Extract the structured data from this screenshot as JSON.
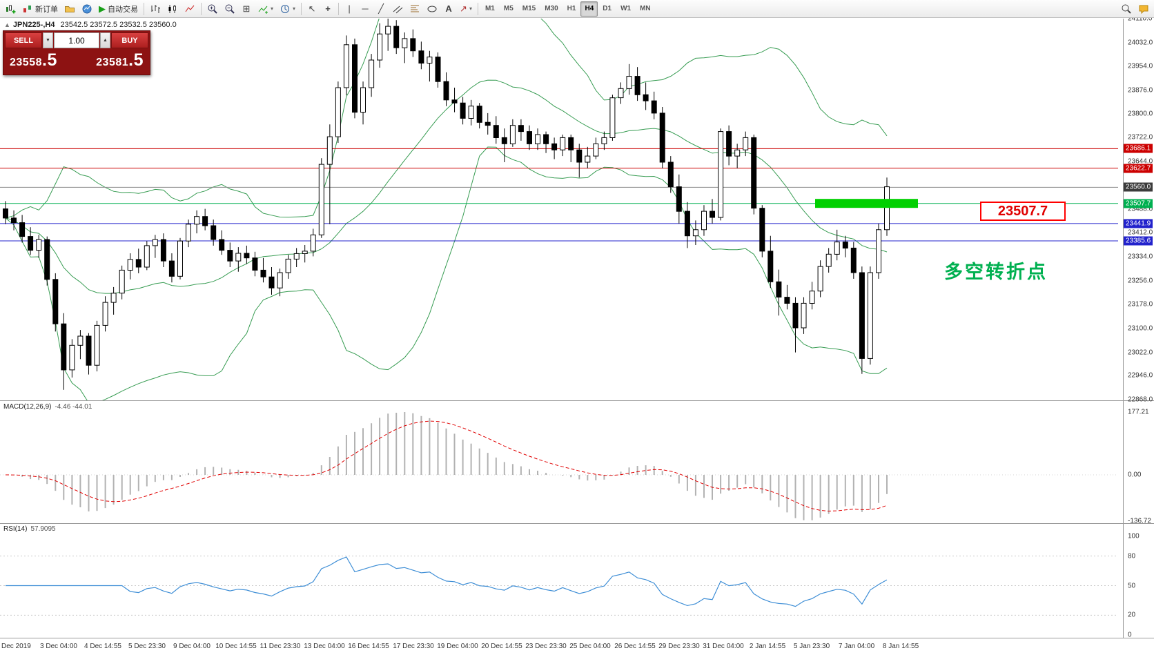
{
  "toolbar": {
    "new_order_label": "新订单",
    "auto_trading_label": "自动交易",
    "timeframes": [
      "M1",
      "M5",
      "M15",
      "M30",
      "H1",
      "H4",
      "D1",
      "W1",
      "MN"
    ],
    "active_timeframe": "H4"
  },
  "icons": {
    "collapse": "▲",
    "dropdown": "▾",
    "spin_up": "▲",
    "spin_down": "▼",
    "cursor": "↖",
    "crosshair": "+",
    "vline": "|",
    "hline": "─",
    "trendline": "╱",
    "text_tool": "A",
    "arrow_tool": "↗",
    "play": "▶",
    "tile": "⊞",
    "list": "≡"
  },
  "symbol_header": {
    "symbol": "JPN225-,H4",
    "quote": "23542.5 23572.5 23532.5 23560.0"
  },
  "trade_panel": {
    "sell_label": "SELL",
    "buy_label": "BUY",
    "volume": "1.00",
    "sell_price": "23558",
    "sell_pip": ".5",
    "buy_price": "23581",
    "buy_pip": ".5"
  },
  "annotation": {
    "text": "多空转折点",
    "color": "#00b050"
  },
  "level_callout": {
    "text": "23507.7",
    "color": "#ff0000"
  },
  "price_axis": {
    "ticks": [
      24110,
      24032,
      23954,
      23876,
      23800,
      23722,
      23644,
      23488,
      23412,
      23334,
      23256,
      23178,
      23100,
      23022,
      22946,
      22868
    ]
  },
  "macd_panel": {
    "title": "MACD(12,26,9)",
    "values": "-4.46 -44.01",
    "axis_labels": [
      "177.21",
      "0.00",
      "-136.72"
    ]
  },
  "rsi_panel": {
    "title": "RSI(14)",
    "value": "57.9095",
    "axis_levels": [
      100,
      80,
      50,
      20,
      0
    ]
  },
  "time_axis": [
    "Dec 2019",
    "3 Dec 04:00",
    "4 Dec 14:55",
    "5 Dec 23:30",
    "9 Dec 04:00",
    "10 Dec 14:55",
    "11 Dec 23:30",
    "13 Dec 04:00",
    "16 Dec 14:55",
    "17 Dec 23:30",
    "19 Dec 04:00",
    "20 Dec 14:55",
    "23 Dec 23:30",
    "25 Dec 04:00",
    "26 Dec 14:55",
    "29 Dec 23:30",
    "31 Dec 04:00",
    "2 Jan 14:55",
    "5 Jan 23:30",
    "7 Jan 04:00",
    "8 Jan 14:55"
  ],
  "chart_data": {
    "type": "candlestick",
    "symbol": "JPN225-",
    "timeframe": "H4",
    "title": "JPN225-,H4 23542.5 23572.5 23532.5 23560.0",
    "ohlc_current": {
      "open": 23542.5,
      "high": 23572.5,
      "low": 23532.5,
      "close": 23560.0
    },
    "bid": 23558.5,
    "ask": 23581.5,
    "price_range": [
      22868,
      24110
    ],
    "candles": [
      [
        23490,
        23515,
        23440,
        23460
      ],
      [
        23460,
        23485,
        23420,
        23445
      ],
      [
        23445,
        23470,
        23380,
        23400
      ],
      [
        23400,
        23430,
        23340,
        23355
      ],
      [
        23355,
        23405,
        23330,
        23390
      ],
      [
        23390,
        23400,
        23240,
        23260
      ],
      [
        23260,
        23280,
        23090,
        23115
      ],
      [
        23115,
        23150,
        22900,
        22965
      ],
      [
        22965,
        23065,
        22940,
        23045
      ],
      [
        23045,
        23095,
        23000,
        23075
      ],
      [
        23075,
        23085,
        22950,
        22980
      ],
      [
        22980,
        23125,
        22960,
        23110
      ],
      [
        23110,
        23205,
        23090,
        23185
      ],
      [
        23185,
        23235,
        23145,
        23215
      ],
      [
        23215,
        23305,
        23195,
        23290
      ],
      [
        23290,
        23345,
        23260,
        23325
      ],
      [
        23325,
        23360,
        23280,
        23300
      ],
      [
        23300,
        23385,
        23290,
        23370
      ],
      [
        23370,
        23405,
        23330,
        23390
      ],
      [
        23390,
        23410,
        23300,
        23320
      ],
      [
        23320,
        23345,
        23250,
        23270
      ],
      [
        23270,
        23395,
        23260,
        23385
      ],
      [
        23385,
        23455,
        23365,
        23440
      ],
      [
        23440,
        23485,
        23410,
        23465
      ],
      [
        23465,
        23490,
        23420,
        23435
      ],
      [
        23435,
        23455,
        23370,
        23390
      ],
      [
        23390,
        23420,
        23340,
        23355
      ],
      [
        23355,
        23380,
        23300,
        23320
      ],
      [
        23320,
        23365,
        23285,
        23345
      ],
      [
        23345,
        23370,
        23310,
        23330
      ],
      [
        23330,
        23350,
        23270,
        23290
      ],
      [
        23290,
        23330,
        23250,
        23268
      ],
      [
        23268,
        23300,
        23210,
        23232
      ],
      [
        23232,
        23295,
        23205,
        23282
      ],
      [
        23282,
        23340,
        23262,
        23326
      ],
      [
        23326,
        23362,
        23300,
        23344
      ],
      [
        23344,
        23372,
        23315,
        23352
      ],
      [
        23352,
        23425,
        23335,
        23405
      ],
      [
        23405,
        23655,
        23395,
        23635
      ],
      [
        23635,
        23765,
        23440,
        23725
      ],
      [
        23725,
        23905,
        23705,
        23885
      ],
      [
        23885,
        24055,
        23860,
        24025
      ],
      [
        24025,
        24045,
        23785,
        23805
      ],
      [
        23805,
        23905,
        23765,
        23885
      ],
      [
        23885,
        23995,
        23855,
        23975
      ],
      [
        23975,
        24095,
        23950,
        24060
      ],
      [
        24060,
        24110,
        24005,
        24085
      ],
      [
        24085,
        24105,
        23995,
        24015
      ],
      [
        24015,
        24065,
        23965,
        24045
      ],
      [
        24045,
        24075,
        23985,
        24005
      ],
      [
        24005,
        24035,
        23945,
        23965
      ],
      [
        23965,
        24005,
        23905,
        23985
      ],
      [
        23985,
        24000,
        23885,
        23905
      ],
      [
        23905,
        23935,
        23825,
        23845
      ],
      [
        23845,
        23885,
        23805,
        23835
      ],
      [
        23835,
        23855,
        23765,
        23785
      ],
      [
        23785,
        23845,
        23762,
        23825
      ],
      [
        23825,
        23835,
        23752,
        23772
      ],
      [
        23772,
        23802,
        23732,
        23762
      ],
      [
        23762,
        23792,
        23702,
        23722
      ],
      [
        23722,
        23752,
        23642,
        23702
      ],
      [
        23702,
        23782,
        23692,
        23762
      ],
      [
        23762,
        23782,
        23712,
        23742
      ],
      [
        23742,
        23762,
        23682,
        23702
      ],
      [
        23702,
        23752,
        23682,
        23732
      ],
      [
        23732,
        23742,
        23672,
        23702
      ],
      [
        23702,
        23722,
        23652,
        23682
      ],
      [
        23682,
        23732,
        23662,
        23722
      ],
      [
        23722,
        23732,
        23642,
        23682
      ],
      [
        23682,
        23702,
        23592,
        23642
      ],
      [
        23642,
        23692,
        23622,
        23662
      ],
      [
        23662,
        23722,
        23652,
        23702
      ],
      [
        23702,
        23742,
        23682,
        23722
      ],
      [
        23722,
        23862,
        23712,
        23852
      ],
      [
        23852,
        23902,
        23832,
        23882
      ],
      [
        23882,
        23962,
        23862,
        23922
      ],
      [
        23922,
        23952,
        23842,
        23862
      ],
      [
        23862,
        23902,
        23812,
        23842
      ],
      [
        23842,
        23872,
        23782,
        23802
      ],
      [
        23802,
        23822,
        23622,
        23642
      ],
      [
        23642,
        23662,
        23542,
        23562
      ],
      [
        23562,
        23602,
        23442,
        23482
      ],
      [
        23482,
        23512,
        23362,
        23402
      ],
      [
        23402,
        23452,
        23372,
        23422
      ],
      [
        23422,
        23502,
        23402,
        23482
      ],
      [
        23482,
        23522,
        23442,
        23462
      ],
      [
        23462,
        23752,
        23452,
        23742
      ],
      [
        23742,
        23762,
        23632,
        23662
      ],
      [
        23662,
        23702,
        23622,
        23682
      ],
      [
        23682,
        23742,
        23662,
        23722
      ],
      [
        23722,
        23732,
        23472,
        23492
      ],
      [
        23492,
        23502,
        23332,
        23352
      ],
      [
        23352,
        23402,
        23232,
        23252
      ],
      [
        23252,
        23292,
        23142,
        23202
      ],
      [
        23202,
        23242,
        23162,
        23182
      ],
      [
        23182,
        23202,
        23022,
        23102
      ],
      [
        23102,
        23202,
        23082,
        23182
      ],
      [
        23182,
        23252,
        23162,
        23222
      ],
      [
        23222,
        23322,
        23202,
        23302
      ],
      [
        23302,
        23362,
        23282,
        23342
      ],
      [
        23342,
        23422,
        23322,
        23382
      ],
      [
        23382,
        23402,
        23332,
        23362
      ],
      [
        23362,
        23382,
        23262,
        23282
      ],
      [
        23282,
        23302,
        22952,
        23002
      ],
      [
        23002,
        23302,
        22982,
        23282
      ],
      [
        23282,
        23442,
        23262,
        23422
      ],
      [
        23422,
        23592,
        23402,
        23562
      ]
    ],
    "overlays": {
      "bollinger": {
        "period": 20,
        "deviation": 2,
        "color": "#379c52"
      },
      "horizontal_lines": [
        {
          "price": 23686.1,
          "color": "#cc0000",
          "style": "solid"
        },
        {
          "price": 23622.7,
          "color": "#cc0000",
          "style": "solid"
        },
        {
          "price": 23560.0,
          "color": "#8a8a8a",
          "style": "solid",
          "role": "bid-line"
        },
        {
          "price": 23507.7,
          "color": "#00b050",
          "style": "solid",
          "highlight": true
        },
        {
          "price": 23441.9,
          "color": "#2222cc",
          "style": "solid"
        },
        {
          "price": 23385.6,
          "color": "#2222cc",
          "style": "solid"
        }
      ],
      "indicators": [
        {
          "name": "MACD",
          "params": [
            12,
            26,
            9
          ],
          "current": [
            -4.46,
            -44.01
          ],
          "axis_range": [
            177.21,
            -136.72
          ]
        },
        {
          "name": "RSI",
          "params": [
            14
          ],
          "current": 57.9095,
          "levels": [
            80,
            50,
            20
          ]
        }
      ]
    }
  }
}
